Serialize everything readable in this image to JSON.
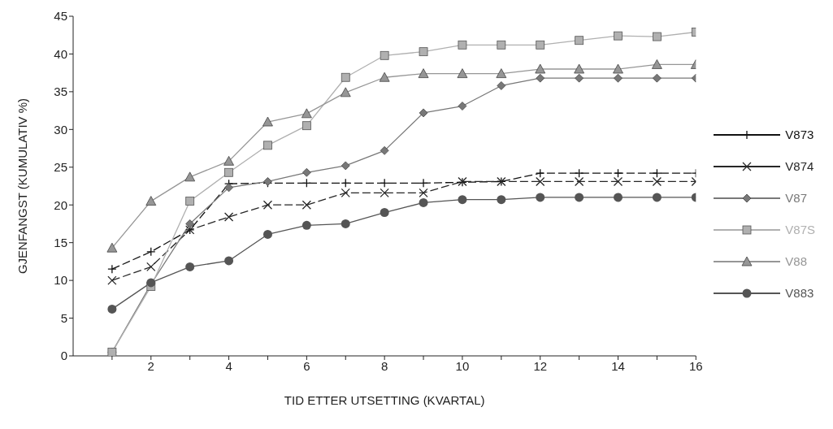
{
  "chart_data": {
    "type": "line",
    "xlabel": "TID ETTER UTSETTING (KVARTAL)",
    "ylabel": "GJENFANGST (KUMULATIV %)",
    "x": [
      1,
      2,
      3,
      4,
      5,
      6,
      7,
      8,
      9,
      10,
      11,
      12,
      13,
      14,
      15,
      16
    ],
    "xlim": [
      0,
      16
    ],
    "xticks": [
      {
        "value": 1,
        "label": null
      },
      2,
      {
        "value": 3,
        "label": null
      },
      4,
      {
        "value": 5,
        "label": null
      },
      6,
      {
        "value": 7,
        "label": null
      },
      8,
      {
        "value": 9,
        "label": null
      },
      10,
      {
        "value": 11,
        "label": null
      },
      12,
      {
        "value": 13,
        "label": null
      },
      14,
      {
        "value": 15,
        "label": null
      },
      16
    ],
    "ylim": [
      0,
      45
    ],
    "yticks": [
      0,
      5,
      10,
      15,
      20,
      25,
      30,
      35,
      40,
      45
    ],
    "grid": false,
    "legend": "right",
    "series": [
      {
        "name": "V873",
        "color": "#111111",
        "marker": "cross",
        "line_style": "dashed",
        "values": [
          11.5,
          13.8,
          16.7,
          22.8,
          22.9,
          22.9,
          22.9,
          22.9,
          22.9,
          23,
          23.1,
          24.2,
          24.2,
          24.2,
          24.2,
          24.2
        ]
      },
      {
        "name": "V874",
        "color": "#262626",
        "marker": "x",
        "line_style": "dashed",
        "values": [
          10,
          11.8,
          16.7,
          18.4,
          20,
          20,
          21.6,
          21.6,
          21.6,
          23.1,
          23.1,
          23.1,
          23.1,
          23.1,
          23.1,
          23.1
        ]
      },
      {
        "name": "V87",
        "color": "#787878",
        "marker": "diamond",
        "line_style": "solid",
        "values": [
          0.5,
          9.5,
          17.5,
          22.3,
          23.1,
          24.3,
          25.2,
          27.2,
          32.2,
          33.1,
          35.8,
          36.8,
          36.8,
          36.8,
          36.8,
          36.8
        ]
      },
      {
        "name": "V87S",
        "color": "#b0b0b0",
        "marker": "square",
        "line_style": "solid",
        "values": [
          0.5,
          9.2,
          20.5,
          24.3,
          27.9,
          30.5,
          36.9,
          39.8,
          40.3,
          41.2,
          41.2,
          41.2,
          41.8,
          42.4,
          42.3,
          42.9
        ]
      },
      {
        "name": "V88",
        "color": "#969696",
        "marker": "triangle",
        "line_style": "solid",
        "values": [
          14.3,
          20.5,
          23.7,
          25.8,
          31,
          32.1,
          34.9,
          36.9,
          37.4,
          37.4,
          37.4,
          38,
          38,
          38,
          38.6,
          38.6
        ]
      },
      {
        "name": "V883",
        "color": "#555555",
        "marker": "circle",
        "line_style": "solid",
        "values": [
          6.2,
          9.7,
          11.8,
          12.6,
          16.1,
          17.3,
          17.5,
          19,
          20.3,
          20.7,
          20.7,
          21,
          21,
          21,
          21,
          21
        ]
      }
    ]
  }
}
